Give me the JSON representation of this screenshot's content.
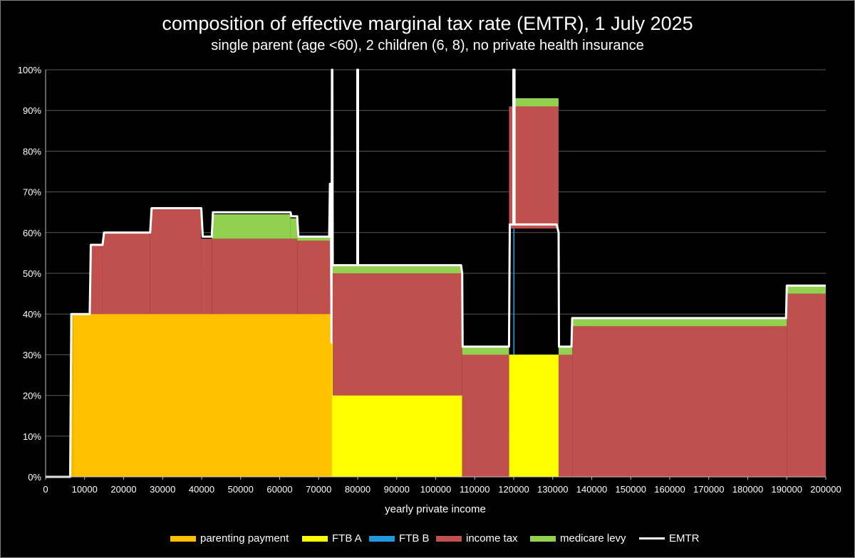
{
  "chart_data": {
    "type": "area",
    "title": "composition of effective marginal tax rate (EMTR), 1 July 2025",
    "subtitle": "single parent (age <60), 2 children (6, 8), no private health insurance",
    "xlabel": "yearly private income",
    "ylabel": "",
    "xlim": [
      0,
      200000
    ],
    "ylim": [
      0,
      1
    ],
    "x_ticks": [
      0,
      10000,
      20000,
      30000,
      40000,
      50000,
      60000,
      70000,
      80000,
      90000,
      100000,
      110000,
      120000,
      130000,
      140000,
      150000,
      160000,
      170000,
      180000,
      190000,
      200000
    ],
    "x_tick_labels": [
      "0",
      "10000",
      "20000",
      "30000",
      "40000",
      "50000",
      "60000",
      "70000",
      "80000",
      "90000",
      "100000",
      "110000",
      "120000",
      "130000",
      "140000",
      "150000",
      "160000",
      "170000",
      "180000",
      "190000",
      "200000"
    ],
    "y_ticks": [
      0,
      0.1,
      0.2,
      0.3,
      0.4,
      0.5,
      0.6,
      0.7,
      0.8,
      0.9,
      1.0
    ],
    "y_tick_labels": [
      "0%",
      "10%",
      "20%",
      "30%",
      "40%",
      "50%",
      "60%",
      "70%",
      "80%",
      "90%",
      "100%"
    ],
    "grid": true,
    "legend_position": "bottom",
    "colors": {
      "parenting_payment": "#FFC000",
      "ftb_a": "#FFFF00",
      "ftb_b": "#1F9BDE",
      "income_tax": "#C0504D",
      "medicare_levy": "#92D050",
      "emtr": "#FFFFFF",
      "grid": "#595959",
      "axis": "#bfbfbf"
    },
    "stack_order": [
      "parenting_payment",
      "ftb_a",
      "ftb_b",
      "income_tax",
      "medicare_levy"
    ],
    "series": [
      {
        "key": "parenting_payment",
        "name": "parenting payment",
        "segments": [
          {
            "x0": 6500,
            "x1": 7000,
            "value": 0.4
          },
          {
            "x0": 7000,
            "x1": 73300,
            "value": 0.4
          }
        ]
      },
      {
        "key": "ftb_a",
        "name": "FTB A",
        "segments": [
          {
            "x0": 73300,
            "x1": 73600,
            "value": 0.33
          },
          {
            "x0": 73600,
            "x1": 106800,
            "value": 0.2
          },
          {
            "x0": 118800,
            "x1": 131500,
            "value": 0.3
          }
        ]
      },
      {
        "key": "ftb_b",
        "name": "FTB B",
        "segments": [
          {
            "x0": 119900,
            "x1": 120200,
            "value": 0.31
          }
        ]
      },
      {
        "key": "income_tax",
        "name": "income tax",
        "segments": [
          {
            "x0": 11300,
            "x1": 14600,
            "value": 0.17
          },
          {
            "x0": 14600,
            "x1": 26800,
            "value": 0.2
          },
          {
            "x0": 26800,
            "x1": 39900,
            "value": 0.26
          },
          {
            "x0": 39900,
            "x1": 42600,
            "value": 0.185
          },
          {
            "x0": 42600,
            "x1": 64500,
            "value": 0.185
          },
          {
            "x0": 64500,
            "x1": 73300,
            "value": 0.18
          },
          {
            "x0": 73600,
            "x1": 106800,
            "value": 0.3
          },
          {
            "x0": 106800,
            "x1": 118800,
            "value": 0.3
          },
          {
            "x0": 118800,
            "x1": 131500,
            "value": 0.3
          },
          {
            "x0": 131500,
            "x1": 135000,
            "value": 0.3
          },
          {
            "x0": 135000,
            "x1": 190000,
            "value": 0.37
          },
          {
            "x0": 190000,
            "x1": 200000,
            "value": 0.45
          }
        ]
      },
      {
        "key": "medicare_levy",
        "name": "medicare levy",
        "segments": [
          {
            "x0": 42600,
            "x1": 62800,
            "value": 0.06
          },
          {
            "x0": 62800,
            "x1": 64500,
            "value": 0.05
          },
          {
            "x0": 64500,
            "x1": 73300,
            "value": 0.01
          },
          {
            "x0": 73600,
            "x1": 106800,
            "value": 0.02
          },
          {
            "x0": 106800,
            "x1": 118800,
            "value": 0.02
          },
          {
            "x0": 119900,
            "x1": 131500,
            "value": 0.02
          },
          {
            "x0": 131500,
            "x1": 135000,
            "value": 0.02
          },
          {
            "x0": 135000,
            "x1": 190000,
            "value": 0.02
          },
          {
            "x0": 190000,
            "x1": 200000,
            "value": 0.02
          }
        ]
      }
    ],
    "emtr": {
      "name": "EMTR",
      "x": [
        0,
        6300,
        6600,
        7000,
        11300,
        11600,
        14600,
        15000,
        26800,
        27200,
        39900,
        40300,
        42600,
        42900,
        62800,
        63000,
        64500,
        64800,
        72700,
        72900,
        73100,
        73300,
        73400,
        73500,
        73600,
        79900,
        79900,
        80100,
        80100,
        106500,
        106800,
        106900,
        118800,
        119000,
        119900,
        119900,
        120200,
        120200,
        131000,
        131500,
        131600,
        134800,
        135000,
        189800,
        190000,
        200000
      ],
      "y": [
        0,
        0,
        0.4,
        0.4,
        0.4,
        0.57,
        0.57,
        0.6,
        0.6,
        0.66,
        0.66,
        0.59,
        0.59,
        0.65,
        0.65,
        0.64,
        0.64,
        0.59,
        0.59,
        0.72,
        0.72,
        0.33,
        1.0,
        1.0,
        0.52,
        0.52,
        1.0,
        1.0,
        0.52,
        0.52,
        0.5,
        0.32,
        0.32,
        0.62,
        0.62,
        1.0,
        1.0,
        0.62,
        0.62,
        0.6,
        0.32,
        0.32,
        0.39,
        0.39,
        0.47,
        0.47
      ]
    }
  }
}
